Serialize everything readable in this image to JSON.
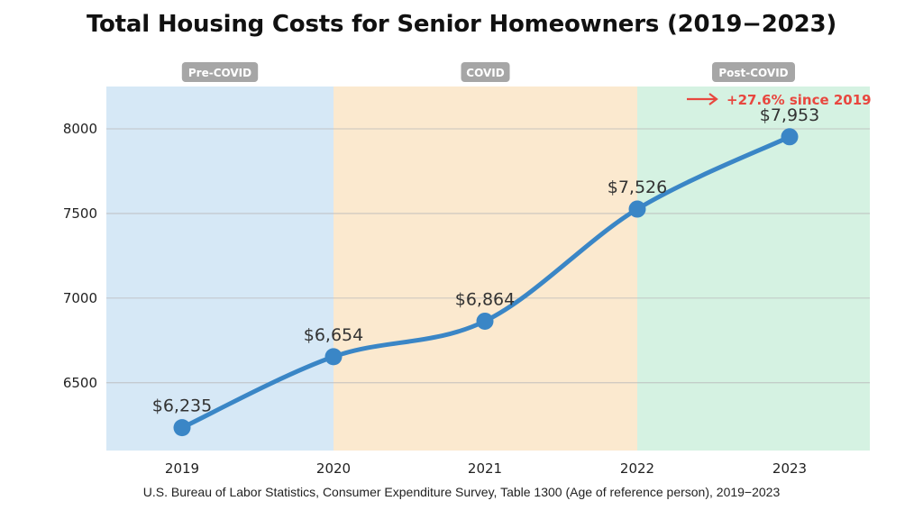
{
  "chart_data": {
    "type": "line",
    "title": "Total Housing Costs for Senior Homeowners (2019−2023)",
    "source": "U.S. Bureau of Labor Statistics, Consumer Expenditure Survey, Table 1300 (Age of reference person), 2019−2023",
    "x": [
      "2019",
      "2020",
      "2021",
      "2022",
      "2023"
    ],
    "values": [
      6235,
      6654,
      6864,
      7526,
      7953
    ],
    "data_labels": [
      "$6,235",
      "$6,654",
      "$6,864",
      "$7,526",
      "$7,953"
    ],
    "yticks": [
      6500,
      7000,
      7500,
      8000
    ],
    "ylim": [
      6100,
      8250
    ],
    "grid": true,
    "line_color": "#3a86c6",
    "eras": [
      {
        "label": "Pre-COVID",
        "from": "2019",
        "to": "2020",
        "color": "#d6e8f6"
      },
      {
        "label": "COVID",
        "from": "2020",
        "to": "2022",
        "color": "#fbe9cf"
      },
      {
        "label": "Post-COVID",
        "from": "2022",
        "to": "2023",
        "color": "#d5f2e2"
      }
    ],
    "annotation": {
      "text": "+27.6% since 2019",
      "color": "#e8473f",
      "icon": "arrow-right-icon"
    }
  }
}
